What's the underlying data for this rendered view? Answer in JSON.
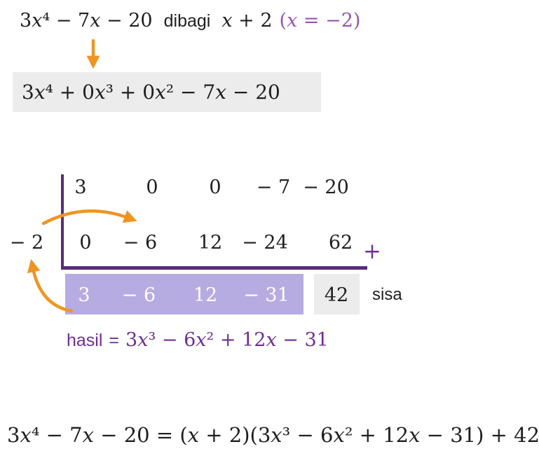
{
  "colors": {
    "orange": "#ef9522",
    "purple_line": "#5b2a78",
    "purple_mid": "#6d2f90",
    "purple_light": "#9354b2",
    "lavender": "#b6ace1",
    "gray_box": "#ececec",
    "ink": "#1f1f1f"
  },
  "header": {
    "dividend": "3x⁴ − 7x − 20",
    "dibagi_label": "dibagi",
    "divisor": "x + 2",
    "root_note": "(x = −2)"
  },
  "padded_polynomial": "3x⁴ + 0x³ + 0x² − 7x − 20",
  "synthetic_division": {
    "multiplier": "− 2",
    "top_row": [
      "3",
      "0",
      "0",
      "− 7",
      "− 20"
    ],
    "middle_row": [
      "0",
      "− 6",
      "12",
      "− 24",
      "62"
    ],
    "plus_sign": "+",
    "result_row": [
      "3",
      "− 6",
      "12",
      "− 31"
    ],
    "remainder": "42",
    "remainder_label": "sisa"
  },
  "quotient": {
    "label": "hasil",
    "equals": "=",
    "expression": "3x³ − 6x² + 12x − 31"
  },
  "final_equation": "3x⁴ − 7x − 20 = (x + 2)(3x³ − 6x² + 12x − 31) + 42"
}
